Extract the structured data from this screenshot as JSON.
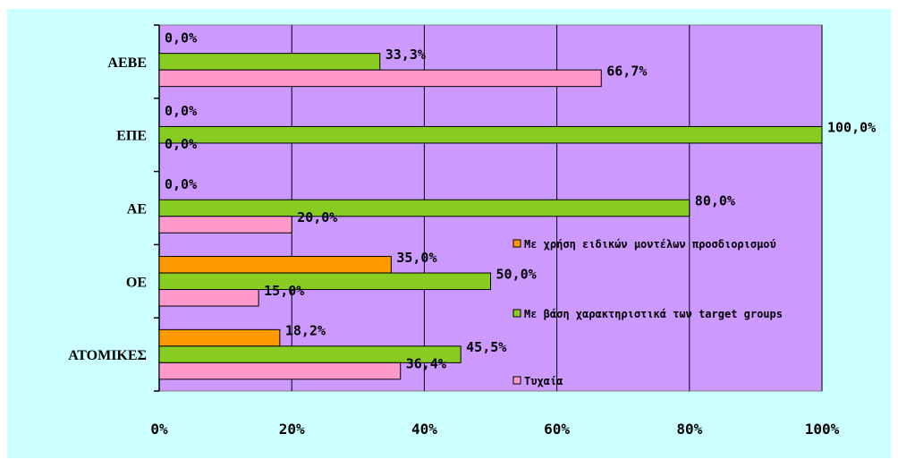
{
  "colors": {
    "chart_background": "#ccffff",
    "plot_background": "#cc99ff",
    "gridline": "#000000"
  },
  "chart_data": {
    "type": "bar",
    "orientation": "horizontal",
    "categories": [
      "ΑΕΒΕ",
      "ΕΠΕ",
      "ΑΕ",
      "ΟΕ",
      "ΑΤΟΜΙΚΕΣ"
    ],
    "series": [
      {
        "name": "Με χρήση ειδικών μοντέλων προσδιορισμού",
        "color": "#ff9900",
        "values": [
          0.0,
          0.0,
          0.0,
          35.0,
          18.2
        ],
        "labels": [
          "0,0%",
          "0,0%",
          "0,0%",
          "35,0%",
          "18,2%"
        ]
      },
      {
        "name": "Με βάση χαρακτηριστικά των target groups",
        "color": "#88cc22",
        "values": [
          33.3,
          100.0,
          80.0,
          50.0,
          45.5
        ],
        "labels": [
          "33,3%",
          "100,0%",
          "80,0%",
          "50,0%",
          "45,5%"
        ]
      },
      {
        "name": "Τυχαία",
        "color": "#ff99cc",
        "values": [
          66.7,
          0.0,
          20.0,
          15.0,
          36.4
        ],
        "labels": [
          "66,7%",
          "0,0%",
          "20,0%",
          "15,0%",
          "36,4%"
        ]
      }
    ],
    "x_ticks": [
      "0%",
      "20%",
      "40%",
      "60%",
      "80%",
      "100%"
    ],
    "xlim": [
      0,
      100
    ],
    "grid": true,
    "legend_position": "inside-right"
  }
}
